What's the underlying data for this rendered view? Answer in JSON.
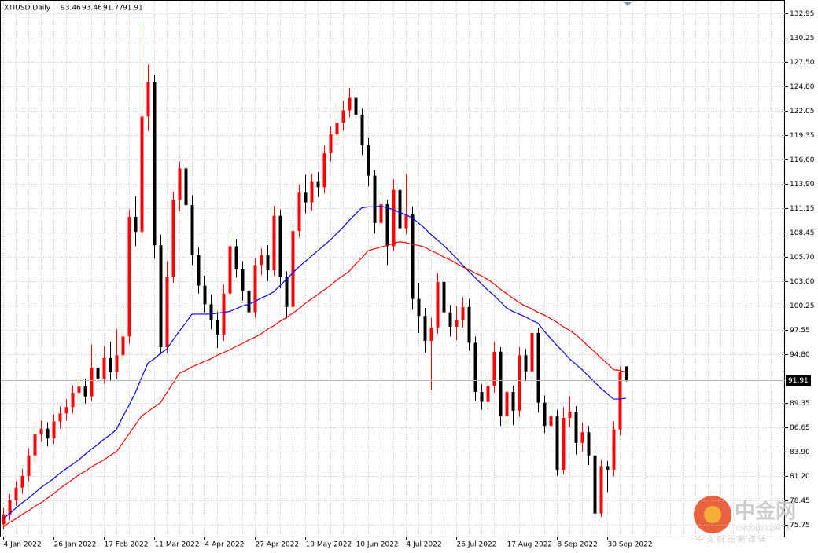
{
  "chart_data": {
    "type": "candlestick",
    "title": "XTIUSD,Daily",
    "categories": [
      "4 Jan 2022",
      null,
      null,
      null,
      null,
      null,
      null,
      null,
      "26 Jan 2022",
      null,
      null,
      null,
      null,
      null,
      null,
      null,
      "17 Feb 2022",
      null,
      null,
      null,
      null,
      null,
      null,
      null,
      "11 Mar 2022",
      null,
      null,
      null,
      null,
      null,
      null,
      null,
      "4 Apr 2022",
      null,
      null,
      null,
      null,
      null,
      null,
      null,
      "27 Apr 2022",
      null,
      null,
      null,
      null,
      null,
      null,
      null,
      "19 May 2022",
      null,
      null,
      null,
      null,
      null,
      null,
      null,
      "10 Jun 2022",
      null,
      null,
      null,
      null,
      null,
      null,
      null,
      "4 Jul 2022",
      null,
      null,
      null,
      null,
      null,
      null,
      null,
      "26 Jul 2022",
      null,
      null,
      null,
      null,
      null,
      null,
      null,
      "17 Aug 2022",
      null,
      null,
      null,
      null,
      null,
      null,
      null,
      "8 Sep 2022",
      null,
      null,
      null,
      null,
      null,
      null,
      null,
      "30 Sep 2022",
      null,
      null,
      null
    ],
    "open": [
      75.8,
      76.9,
      78.5,
      79.9,
      81.2,
      83.5,
      85.9,
      86.5,
      85.4,
      87.3,
      88.2,
      88.9,
      90.5,
      91.2,
      90.1,
      93.3,
      92.1,
      94.4,
      92.8,
      94.7,
      96.8,
      110.2,
      108.5,
      121.4,
      125.3,
      107.0,
      95.6,
      103.5,
      112.1,
      115.6,
      111.5,
      105.9,
      102.5,
      100.4,
      98.6,
      97.0,
      101.6,
      106.9,
      104.3,
      101.9,
      99.5,
      104.8,
      105.9,
      104.2,
      110.3,
      103.5,
      100.1,
      108.6,
      112.9,
      111.8,
      114.1,
      113.5,
      117.3,
      119.4,
      120.7,
      122.1,
      123.5,
      121.6,
      118.2,
      114.8,
      109.5,
      111.6,
      106.9,
      113.2,
      108.9,
      110.5,
      101.0,
      99.1,
      96.3,
      97.8,
      102.9,
      99.5,
      97.9,
      98.6,
      100.1,
      96.1,
      90.6,
      89.5,
      91.3,
      95.1,
      87.9,
      90.6,
      88.5,
      94.7,
      92.9,
      97.2,
      89.4,
      86.8,
      87.9,
      81.9,
      87.7,
      88.4,
      84.9,
      86.1,
      83.5,
      77.0,
      82.3,
      81.9,
      86.4,
      93.46
    ],
    "high": [
      77.6,
      79.2,
      80.6,
      82.0,
      84.3,
      86.8,
      87.4,
      87.2,
      88.1,
      89.0,
      89.8,
      91.3,
      92.4,
      92.0,
      95.9,
      94.6,
      95.7,
      96.2,
      97.6,
      100.2,
      111.0,
      112.5,
      131.5,
      127.2,
      126.0,
      108.2,
      105.2,
      113.0,
      116.4,
      116.2,
      112.6,
      106.8,
      103.6,
      101.5,
      99.6,
      102.6,
      108.6,
      107.7,
      105.2,
      102.7,
      105.6,
      106.7,
      107.0,
      111.4,
      111.0,
      104.1,
      109.4,
      113.8,
      114.9,
      115.0,
      115.2,
      118.2,
      120.3,
      122.6,
      123.2,
      124.6,
      124.2,
      122.3,
      119.0,
      115.4,
      112.9,
      112.1,
      114.4,
      113.8,
      115.0,
      111.3,
      102.8,
      100.0,
      98.9,
      103.9,
      104.1,
      100.3,
      100.2,
      101.2,
      101.0,
      96.8,
      91.5,
      92.4,
      96.2,
      95.6,
      91.6,
      91.3,
      95.6,
      95.4,
      97.9,
      97.8,
      90.2,
      89.2,
      88.6,
      88.9,
      90.1,
      89.0,
      87.2,
      86.8,
      84.1,
      83.0,
      82.9,
      87.3,
      93.4,
      93.46
    ],
    "low": [
      75.2,
      76.3,
      77.9,
      79.2,
      80.6,
      82.9,
      85.0,
      84.5,
      84.8,
      86.5,
      87.4,
      88.2,
      89.7,
      89.3,
      89.6,
      91.2,
      91.5,
      91.8,
      92.0,
      93.9,
      96.0,
      106.9,
      107.8,
      119.8,
      105.5,
      94.8,
      94.9,
      102.8,
      110.8,
      110.0,
      104.8,
      101.6,
      99.5,
      97.6,
      95.5,
      96.3,
      100.9,
      103.4,
      100.8,
      98.8,
      98.9,
      103.7,
      103.0,
      103.6,
      102.2,
      98.8,
      99.4,
      107.9,
      110.6,
      110.9,
      112.4,
      112.8,
      116.4,
      118.7,
      119.8,
      121.3,
      120.4,
      117.1,
      113.6,
      108.3,
      108.4,
      104.8,
      106.3,
      107.6,
      108.2,
      99.8,
      97.2,
      95.0,
      90.8,
      97.1,
      98.4,
      96.8,
      96.4,
      97.8,
      95.2,
      89.6,
      88.6,
      88.7,
      90.5,
      86.8,
      87.0,
      86.9,
      87.8,
      91.8,
      92.1,
      88.3,
      86.0,
      85.8,
      81.2,
      81.4,
      86.6,
      83.6,
      83.9,
      82.4,
      76.5,
      76.6,
      79.4,
      81.2,
      85.7,
      91.77
    ],
    "close": [
      76.9,
      78.5,
      79.9,
      81.2,
      83.5,
      85.9,
      86.5,
      85.4,
      87.3,
      88.2,
      88.9,
      90.5,
      91.2,
      90.1,
      93.3,
      92.1,
      94.4,
      92.8,
      94.7,
      96.8,
      110.2,
      108.5,
      121.4,
      125.3,
      107.0,
      95.6,
      103.5,
      112.1,
      115.6,
      111.5,
      105.9,
      102.5,
      100.4,
      98.6,
      97.0,
      101.6,
      106.9,
      104.3,
      101.9,
      99.5,
      104.8,
      105.9,
      104.2,
      110.3,
      103.5,
      100.1,
      108.6,
      112.9,
      111.8,
      114.1,
      113.5,
      117.3,
      119.4,
      120.7,
      122.1,
      123.5,
      121.6,
      118.2,
      114.8,
      109.5,
      111.6,
      106.9,
      113.2,
      108.9,
      110.5,
      101.0,
      99.1,
      96.3,
      97.8,
      102.9,
      99.5,
      97.9,
      98.6,
      100.1,
      96.1,
      90.6,
      89.5,
      91.3,
      95.1,
      87.9,
      90.6,
      88.5,
      94.7,
      92.9,
      97.2,
      89.4,
      86.8,
      87.9,
      81.9,
      87.7,
      88.4,
      84.9,
      86.1,
      83.5,
      77.0,
      82.3,
      81.9,
      86.4,
      92.8,
      91.91
    ],
    "up_color": "#ff0000",
    "down_color": "#000000",
    "ma": [
      {
        "color": "#0000ff",
        "values": [
          76.4,
          77.0,
          77.6,
          78.2,
          78.7,
          79.3,
          79.9,
          80.4,
          80.9,
          81.5,
          82.0,
          82.5,
          83.0,
          83.6,
          84.2,
          84.7,
          85.3,
          85.8,
          86.4,
          87.8,
          89.1,
          90.5,
          92.2,
          93.8,
          94.3,
          94.9,
          95.4,
          96.4,
          97.4,
          98.3,
          99.3,
          99.3,
          99.3,
          99.3,
          99.4,
          99.5,
          99.6,
          99.9,
          100.2,
          100.4,
          100.7,
          101.1,
          101.4,
          101.8,
          102.5,
          103.2,
          103.9,
          104.6,
          105.2,
          105.8,
          106.4,
          107.0,
          107.6,
          108.3,
          109.0,
          109.8,
          110.5,
          111.2,
          111.3,
          111.3,
          111.4,
          111.2,
          111.0,
          110.7,
          110.4,
          110.1,
          109.5,
          108.9,
          108.2,
          107.6,
          107.0,
          106.3,
          105.6,
          104.8,
          104.1,
          103.4,
          102.7,
          102.0,
          101.4,
          100.7,
          100.0,
          99.6,
          99.3,
          99.0,
          98.6,
          98.3,
          97.4,
          96.6,
          95.8,
          95.1,
          94.3,
          93.7,
          93.1,
          92.4,
          91.7,
          91.0,
          90.4,
          89.8,
          89.8,
          89.9
        ]
      },
      {
        "color": "#ff0000",
        "values": [
          75.5,
          76.0,
          76.4,
          76.9,
          77.3,
          77.8,
          78.2,
          78.7,
          79.2,
          79.8,
          80.3,
          80.8,
          81.3,
          81.7,
          82.2,
          82.6,
          83.0,
          83.5,
          83.9,
          84.9,
          85.9,
          86.9,
          87.9,
          88.4,
          88.9,
          89.4,
          90.5,
          91.6,
          92.7,
          93.0,
          93.4,
          93.7,
          94.0,
          94.3,
          94.7,
          95.0,
          95.3,
          95.7,
          96.0,
          96.4,
          96.7,
          97.1,
          97.6,
          98.0,
          98.5,
          98.9,
          99.4,
          99.9,
          100.5,
          101.0,
          101.5,
          102.0,
          102.5,
          103.1,
          103.6,
          104.1,
          104.9,
          105.6,
          106.4,
          106.6,
          106.8,
          107.0,
          107.2,
          107.4,
          107.3,
          107.1,
          107.0,
          106.8,
          106.4,
          106.1,
          105.7,
          105.4,
          105.0,
          104.6,
          104.3,
          103.9,
          103.6,
          103.2,
          102.7,
          102.1,
          101.6,
          101.1,
          100.6,
          100.2,
          99.9,
          99.5,
          99.2,
          98.8,
          98.4,
          97.9,
          97.5,
          97.0,
          96.4,
          95.7,
          95.1,
          94.4,
          93.8,
          93.1,
          93.0,
          92.8
        ]
      }
    ],
    "ylim": [
      74.43,
      134.44
    ],
    "yticks": [
      75.75,
      78.45,
      {
        "value": 81.2,
        "label": "81.20"
      },
      {
        "value": 83.9,
        "label": "83.90"
      },
      86.65,
      89.35,
      {
        "value": 94.8,
        "label": "94.80"
      },
      97.55,
      100.25,
      {
        "value": 103,
        "label": "103.00"
      },
      {
        "value": 105.7,
        "label": "105.70"
      },
      108.45,
      111.15,
      {
        "value": 113.9,
        "label": "113.90"
      },
      {
        "value": 116.6,
        "label": "116.60"
      },
      119.35,
      122.05,
      {
        "value": 124.8,
        "label": "124.80"
      },
      {
        "value": 127.5,
        "label": "127.50"
      },
      130.25,
      132.95
    ],
    "grid": true,
    "watermark": {
      "title": "中金网",
      "site": "CNGOLD.COM.CN",
      "tagline": "中 文 财 经 新 媒 体"
    }
  }
}
